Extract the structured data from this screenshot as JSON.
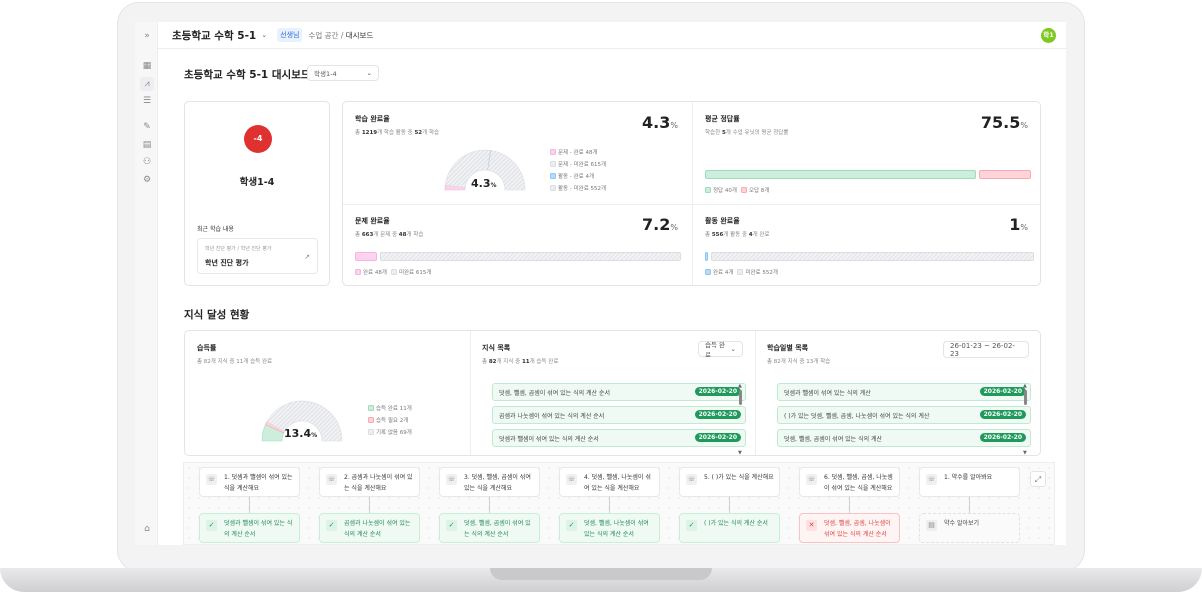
{
  "header": {
    "course": "초등학교 수학 5-1",
    "role_badge": "선생님",
    "breadcrumb": [
      "수업 공간",
      "대시보드"
    ],
    "avatar": "학1"
  },
  "sidebar": {
    "icons": [
      "expand-icon",
      "map-icon",
      "chart-icon",
      "list-icon",
      "pencil-icon",
      "document-icon",
      "users-icon",
      "gear-icon",
      "home-icon"
    ]
  },
  "page": {
    "title": "초등학교 수학 5-1 대시보드",
    "student_select": "학생1-4"
  },
  "student": {
    "badge": "-4",
    "name": "학생1-4",
    "recent_label": "최근 학습 내용",
    "recent_path": "학년 진단 평가 / 학년 진단 평가",
    "recent_title": "학년 진단 평가"
  },
  "learning": {
    "title": "학습 완료율",
    "sub_pre": "총 ",
    "sub_total": "1219",
    "sub_mid": "개 학습 활동 중 ",
    "sub_done": "52",
    "sub_post": "개 학습",
    "value": "4.3",
    "unit": "%",
    "legend": [
      "문제 - 완료 48개",
      "문제 - 미완료 615개",
      "활동 - 완료 4개",
      "활동 - 미완료 552개"
    ],
    "segments": [
      48,
      615,
      4,
      552
    ]
  },
  "accuracy": {
    "title": "평균 정답률",
    "sub_pre": "학습한 ",
    "sub_n": "5",
    "sub_post": "개 수업 유닛의 평균 정답률",
    "value": "75.5",
    "unit": "%",
    "legend": [
      "정답 40개",
      "오답 8개"
    ],
    "correct": 40,
    "wrong": 8
  },
  "problem": {
    "title": "문제 완료율",
    "sub_pre": "총 ",
    "sub_total": "663",
    "sub_mid": "개 문제 중 ",
    "sub_done": "48",
    "sub_post": "개 학습",
    "value": "7.2",
    "unit": "%",
    "legend": [
      "완료 48개",
      "미완료 615개"
    ],
    "done": 48,
    "todo": 615
  },
  "activity": {
    "title": "활동 완료율",
    "sub_pre": "총 ",
    "sub_total": "556",
    "sub_mid": "개 활동 중 ",
    "sub_done": "4",
    "sub_post": "개 완료",
    "value": "1",
    "unit": "%",
    "legend": [
      "완료 4개",
      "미완료 552개"
    ],
    "done": 4,
    "todo": 552
  },
  "knowledge": {
    "section_title": "지식 달성 현황",
    "mastery": {
      "title": "습득률",
      "sub": "총 82개 지식 중 11개 습득 완료",
      "value": "13.4",
      "unit": "%",
      "legend": [
        "습득 완료 11개",
        "습득 필요 2개",
        "기록 없음 69개"
      ],
      "segments": [
        11,
        2,
        69
      ]
    },
    "list": {
      "title": "지식 목록",
      "sub_pre": "총 ",
      "sub_total": "82",
      "sub_mid": "개 지식 중 ",
      "sub_done": "11",
      "sub_post": "개 습득 완료",
      "filter": "습득 완료",
      "items": [
        {
          "label": "덧셈, 뺄셈, 곱셈이 섞여 있는 식의 계산 순서",
          "date": "2026-02-20"
        },
        {
          "label": "곱셈과 나눗셈이 섞여 있는 식의 계산 순서",
          "date": "2026-02-20"
        },
        {
          "label": "덧셈과 뺄셈이 섞여 있는 식의 계산 순서",
          "date": "2026-02-20"
        }
      ]
    },
    "daily": {
      "title": "학습일별 목록",
      "sub": "총 82개 지식 중 13개 학습",
      "range": "26-01-23 ~ 26-02-23",
      "items": [
        {
          "label": "덧셈과 뺄셈이 섞여 있는 식의 계산",
          "date": "2026-02-20"
        },
        {
          "label": "( )가 있는 덧셈, 뺄셈, 곱셈, 나눗셈이 섞여 있는 식의 계산",
          "date": "2026-02-20"
        },
        {
          "label": "덧셈, 뺄셈, 곱셈이 섞여 있는 식의 계산",
          "date": "2026-02-20"
        }
      ]
    }
  },
  "flow": {
    "nodes": [
      {
        "label": "1. 덧셈과 뺄셈이 섞여 있는 식을 계산해요",
        "result": "덧셈과 뺄셈이 섞여 있는 식의 계산 순서",
        "status": "ok"
      },
      {
        "label": "2. 곱셈과 나눗셈이 섞여 있는 식을 계산해요",
        "result": "곱셈과 나눗셈이 섞여 있는 식의 계산 순서",
        "status": "ok"
      },
      {
        "label": "3. 덧셈, 뺄셈, 곱셈이 섞여 있는 식을 계산해요",
        "result": "덧셈, 뺄셈, 곱셈이 섞여 있는 식의 계산 순서",
        "status": "ok"
      },
      {
        "label": "4. 덧셈, 뺄셈, 나눗셈이 섞여 있는 식을 계산해요",
        "result": "덧셈, 뺄셈, 나눗셈이 섞여 있는 식의 계산 순서",
        "status": "ok"
      },
      {
        "label": "5. ( )가 있는 식을 계산해요",
        "result": "( )가 있는 식의 계산 순서",
        "status": "ok"
      },
      {
        "label": "6. 덧셈, 뺄셈, 곱셈, 나눗셈이 섞여 있는 식을 계산해요",
        "result": "덧셈, 뺄셈, 곱셈, 나눗셈이 섞여 있는 식의 계산 순서",
        "status": "bad"
      },
      {
        "label": "1. 약수를 알아봐요",
        "result": "약수 알아보기",
        "status": "none"
      }
    ]
  },
  "colors": {
    "pink": "#fcd3ef",
    "blue": "#b6dcfb",
    "green": "#cdeedd",
    "red": "#ffd4d8",
    "badge_red": "#e03131",
    "date_green": "#1f9a5b",
    "avatar": "#7ec820"
  }
}
